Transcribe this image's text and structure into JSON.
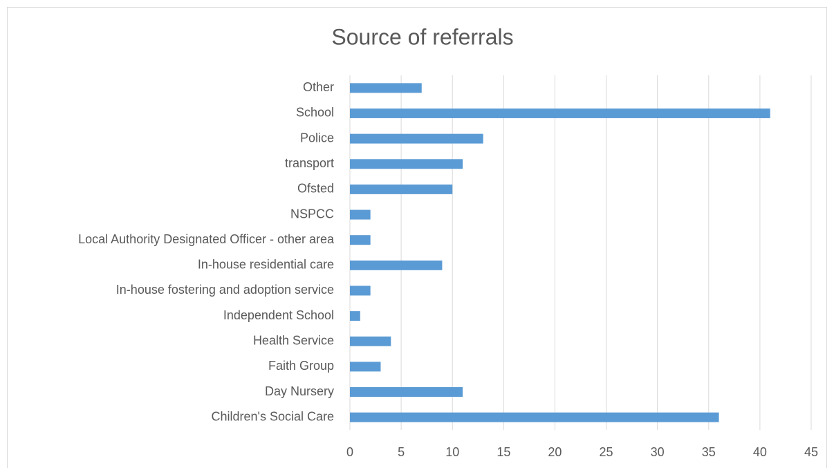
{
  "chart_data": {
    "type": "bar",
    "orientation": "horizontal",
    "title": "Source of referrals",
    "categories": [
      "Other",
      "School",
      "Police",
      "transport",
      "Ofsted",
      "NSPCC",
      "Local Authority Designated Officer - other area",
      "In-house residential care",
      "In-house fostering and adoption service",
      "Independent School",
      "Health Service",
      "Faith Group",
      "Day Nursery",
      "Children's Social Care"
    ],
    "values": [
      7,
      41,
      13,
      11,
      10,
      2,
      2,
      9,
      2,
      1,
      4,
      3,
      11,
      36
    ],
    "color": "#5b9bd5",
    "xlim": [
      0,
      45
    ],
    "xticks": [
      0,
      5,
      10,
      15,
      20,
      25,
      30,
      35,
      40,
      45
    ],
    "grid": true
  }
}
